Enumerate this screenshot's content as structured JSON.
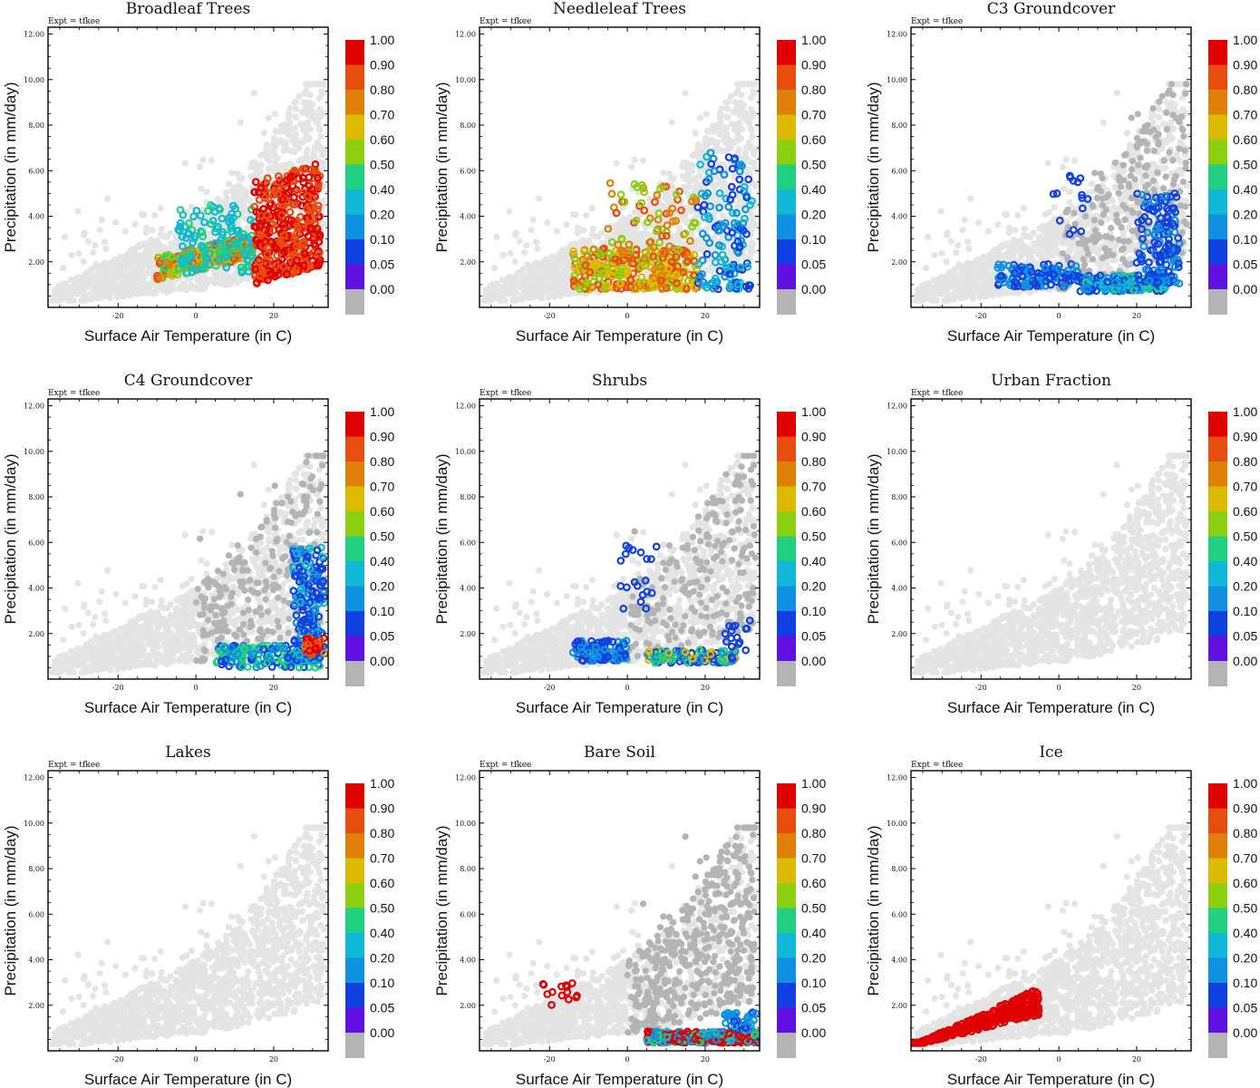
{
  "figure": {
    "expt_label": "Expt = tfkee",
    "xlabel": "Surface Air Temperature (in C)",
    "ylabel": "Precipitation (in mm/day)",
    "xlim": [
      -38,
      34
    ],
    "ylim": [
      0,
      12.3
    ],
    "x_ticks": [
      -20,
      0,
      20
    ],
    "y_ticks": [
      2.0,
      4.0,
      6.0,
      8.0,
      10.0,
      12.0
    ],
    "colorbar": {
      "levels": [
        1.0,
        0.9,
        0.8,
        0.7,
        0.6,
        0.5,
        0.4,
        0.2,
        0.1,
        0.05,
        0.0
      ],
      "level_labels": [
        "1.00",
        "0.90",
        "0.80",
        "0.70",
        "0.60",
        "0.50",
        "0.40",
        "0.20",
        "0.10",
        "0.05",
        "0.00"
      ],
      "colors": [
        "#e00000",
        "#e84d10",
        "#e08008",
        "#dcba00",
        "#8ccf10",
        "#20d080",
        "#10b8d8",
        "#1090e0",
        "#1040e0",
        "#6010e0",
        "#b4b4b4"
      ]
    },
    "background_point_color": "#e4e4e4"
  },
  "chart_data": [
    {
      "type": "scatter",
      "title": "Broadleaf Trees",
      "xlabel": "Surface Air Temperature (in C)",
      "ylabel": "Precipitation (in mm/day)",
      "xlim": [
        -38,
        34
      ],
      "ylim": [
        0,
        12.3
      ],
      "colored_x_range": [
        -12,
        32
      ],
      "colored_note": "dense high fractions (0.8-1.0) at 15-32 C, mid fractions 0.4-0.7 at -10-15 C"
    },
    {
      "type": "scatter",
      "title": "Needleleaf Trees",
      "xlabel": "Surface Air Temperature (in C)",
      "ylabel": "Precipitation (in mm/day)",
      "xlim": [
        -38,
        34
      ],
      "ylim": [
        0,
        12.3
      ],
      "colored_x_range": [
        -15,
        32
      ],
      "colored_note": "0.6-0.9 at -15-20 C, low fractions 0.05-0.2 at 20-32 C"
    },
    {
      "type": "scatter",
      "title": "C3 Groundcover",
      "xlabel": "Surface Air Temperature (in C)",
      "ylabel": "Precipitation (in mm/day)",
      "xlim": [
        -38,
        34
      ],
      "ylim": [
        0,
        12.3
      ],
      "colored_x_range": [
        -20,
        32
      ],
      "colored_note": "mostly 0.05-0.2 fractions"
    },
    {
      "type": "scatter",
      "title": "C4 Groundcover",
      "xlabel": "Surface Air Temperature (in C)",
      "ylabel": "Precipitation (in mm/day)",
      "xlim": [
        -38,
        34
      ],
      "ylim": [
        0,
        12.3
      ],
      "colored_x_range": [
        5,
        33
      ],
      "colored_note": "mostly 0.05-0.2, some 0.7-0.9 near 28-33 C"
    },
    {
      "type": "scatter",
      "title": "Shrubs",
      "xlabel": "Surface Air Temperature (in C)",
      "ylabel": "Precipitation (in mm/day)",
      "xlim": [
        -38,
        34
      ],
      "ylim": [
        0,
        12.3
      ],
      "colored_x_range": [
        -15,
        32
      ],
      "colored_note": "mostly 0.05-0.2 with some 0.4-0.7"
    },
    {
      "type": "scatter",
      "title": "Urban Fraction",
      "xlabel": "Surface Air Temperature (in C)",
      "ylabel": "Precipitation (in mm/day)",
      "xlim": [
        -38,
        34
      ],
      "ylim": [
        0,
        12.3
      ],
      "colored_x_range": null,
      "colored_note": "no colored points"
    },
    {
      "type": "scatter",
      "title": "Lakes",
      "xlabel": "Surface Air Temperature (in C)",
      "ylabel": "Precipitation (in mm/day)",
      "xlim": [
        -38,
        34
      ],
      "ylim": [
        0,
        12.3
      ],
      "colored_x_range": null,
      "colored_note": "no colored points"
    },
    {
      "type": "scatter",
      "title": "Bare Soil",
      "xlabel": "Surface Air Temperature (in C)",
      "ylabel": "Precipitation (in mm/day)",
      "xlim": [
        -38,
        34
      ],
      "ylim": [
        0,
        12.3
      ],
      "colored_x_range": [
        -22,
        34
      ],
      "colored_note": "1.0 fraction at 5-34 C with low precipitation, small red cluster near -20 C"
    },
    {
      "type": "scatter",
      "title": "Ice",
      "xlabel": "Surface Air Temperature (in C)",
      "ylabel": "Precipitation (in mm/day)",
      "xlim": [
        -38,
        34
      ],
      "ylim": [
        0,
        12.3
      ],
      "colored_x_range": [
        -38,
        -5
      ],
      "colored_note": "all 1.0 fraction, cold and dry"
    }
  ]
}
